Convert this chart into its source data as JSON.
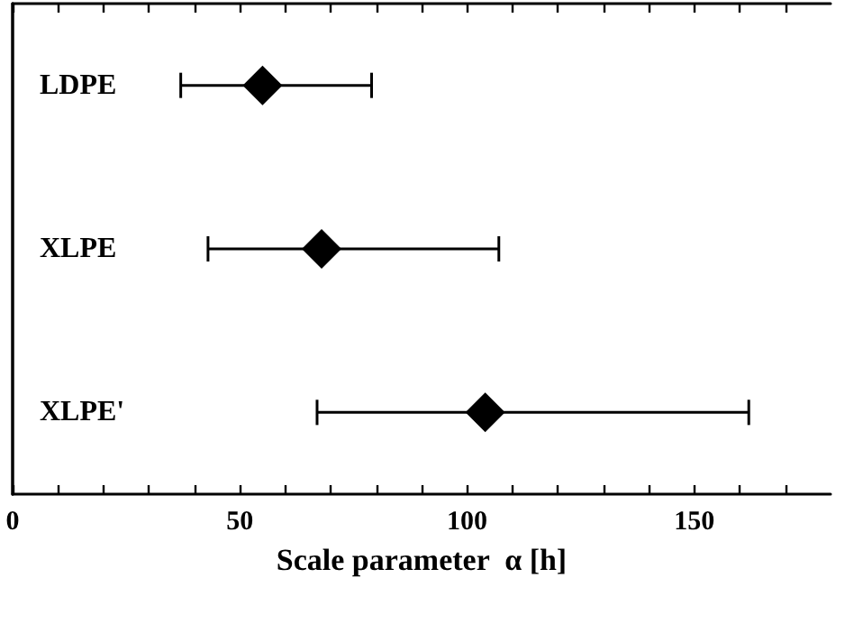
{
  "chart_data": {
    "type": "scatter",
    "orientation": "horizontal",
    "xlabel": "Scale parameter  α [h]",
    "categories": [
      "LDPE",
      "XLPE",
      "XLPE'"
    ],
    "values": [
      55,
      68,
      104
    ],
    "errors": [
      [
        37,
        79
      ],
      [
        43,
        107
      ],
      [
        67,
        162
      ]
    ],
    "color": "#000000",
    "marker": "diamond",
    "xlim": [
      0,
      180
    ],
    "xticks": [
      0,
      {
        "value": 10,
        "label": null
      },
      {
        "value": 20,
        "label": null
      },
      {
        "value": 30,
        "label": null
      },
      {
        "value": 40,
        "label": null
      },
      50,
      {
        "value": 60,
        "label": null
      },
      {
        "value": 70,
        "label": null
      },
      {
        "value": 80,
        "label": null
      },
      {
        "value": 90,
        "label": null
      },
      100,
      {
        "value": 110,
        "label": null
      },
      {
        "value": 120,
        "label": null
      },
      {
        "value": 130,
        "label": null
      },
      {
        "value": 140,
        "label": null
      },
      150,
      {
        "value": 160,
        "label": null
      },
      {
        "value": 170,
        "label": null
      }
    ],
    "grid": false
  }
}
